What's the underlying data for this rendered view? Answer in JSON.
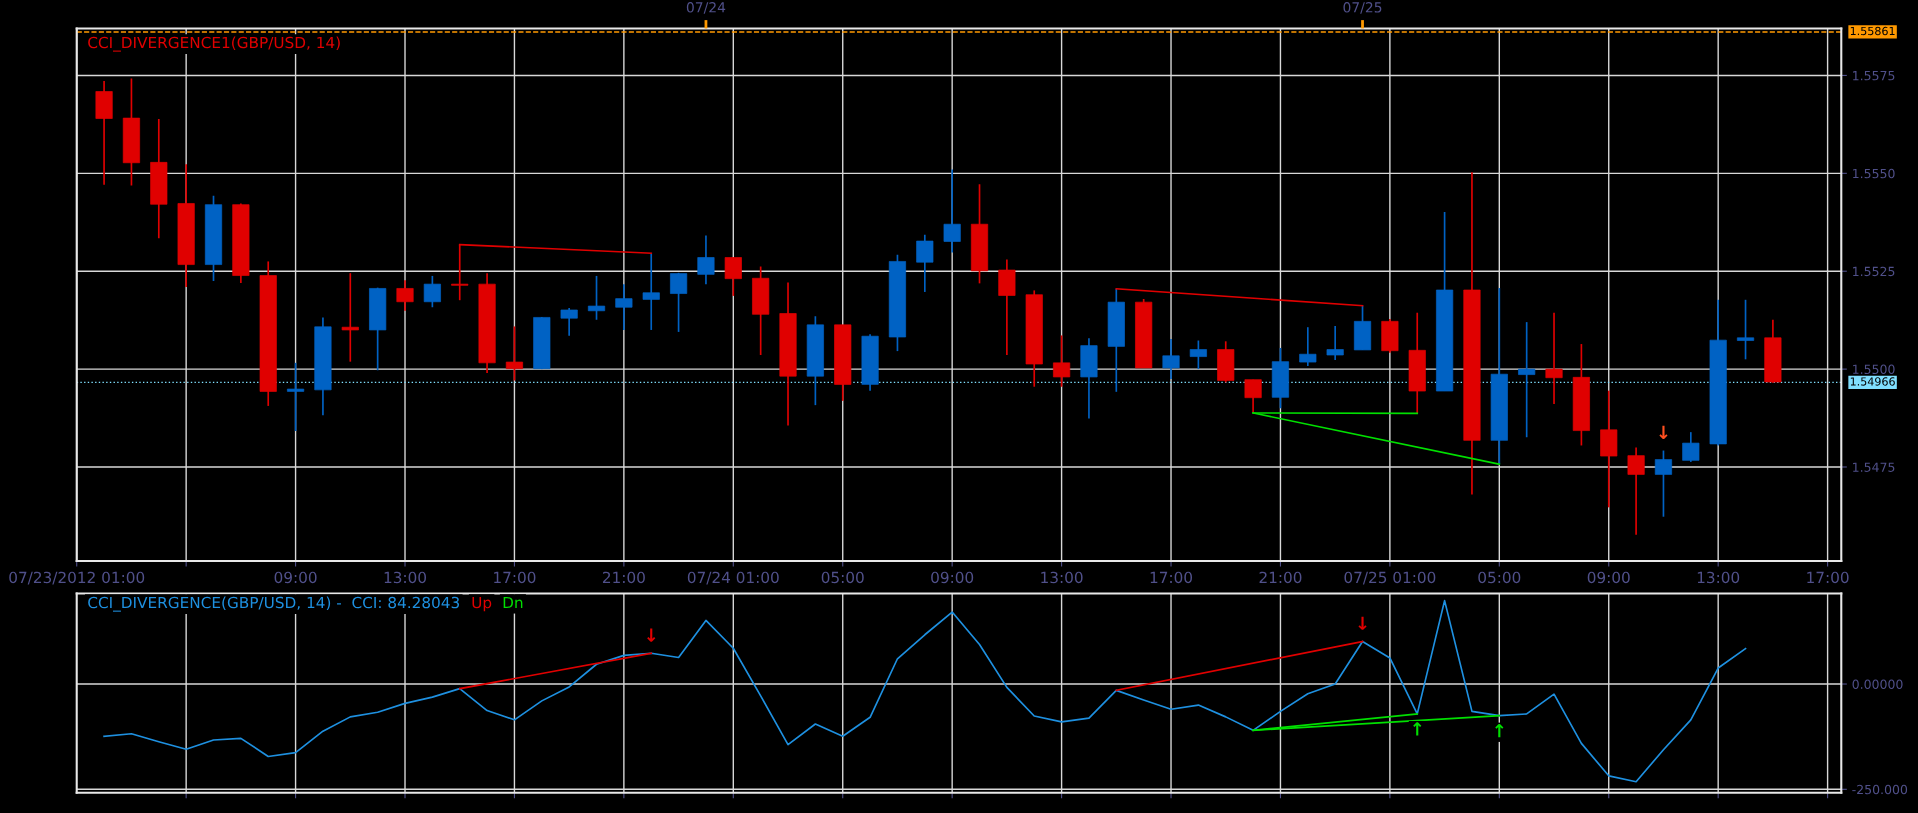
{
  "chart_data": [
    {
      "type": "candlestick",
      "title": "CCI_DIVERGENCE1(GBP/USD, 14)",
      "x": [
        "2012-07-23T02:00",
        "2012-07-23T03:00",
        "2012-07-23T04:00",
        "2012-07-23T05:00",
        "2012-07-23T06:00",
        "2012-07-23T07:00",
        "2012-07-23T08:00",
        "2012-07-23T09:00",
        "2012-07-23T10:00",
        "2012-07-23T11:00",
        "2012-07-23T12:00",
        "2012-07-23T13:00",
        "2012-07-23T14:00",
        "2012-07-23T15:00",
        "2012-07-23T16:00",
        "2012-07-23T17:00",
        "2012-07-23T18:00",
        "2012-07-23T19:00",
        "2012-07-23T20:00",
        "2012-07-23T21:00",
        "2012-07-23T22:00",
        "2012-07-23T23:00",
        "2012-07-24T00:00",
        "2012-07-24T01:00",
        "2012-07-24T02:00",
        "2012-07-24T03:00",
        "2012-07-24T04:00",
        "2012-07-24T05:00",
        "2012-07-24T06:00",
        "2012-07-24T07:00",
        "2012-07-24T08:00",
        "2012-07-24T09:00",
        "2012-07-24T10:00",
        "2012-07-24T11:00",
        "2012-07-24T12:00",
        "2012-07-24T13:00",
        "2012-07-24T14:00",
        "2012-07-24T15:00",
        "2012-07-24T16:00",
        "2012-07-24T17:00",
        "2012-07-24T18:00",
        "2012-07-24T19:00",
        "2012-07-24T20:00",
        "2012-07-24T21:00",
        "2012-07-24T22:00",
        "2012-07-24T23:00",
        "2012-07-25T00:00",
        "2012-07-25T01:00",
        "2012-07-25T02:00",
        "2012-07-25T03:00",
        "2012-07-25T04:00",
        "2012-07-25T05:00",
        "2012-07-25T06:00",
        "2012-07-25T07:00",
        "2012-07-25T08:00",
        "2012-07-25T09:00",
        "2012-07-25T10:00",
        "2012-07-25T11:00",
        "2012-07-25T12:00",
        "2012-07-25T13:00",
        "2012-07-25T14:00",
        "2012-07-25T15:00"
      ],
      "ohlc": [
        [
          1.55709,
          1.55736,
          1.55471,
          1.5564
        ],
        [
          1.55641,
          1.55742,
          1.55469,
          1.55527
        ],
        [
          1.55528,
          1.55639,
          1.55334,
          1.55421
        ],
        [
          1.55423,
          1.55523,
          1.5521,
          1.55267
        ],
        [
          1.55267,
          1.55443,
          1.55225,
          1.5542
        ],
        [
          1.5542,
          1.55423,
          1.5522,
          1.55239
        ],
        [
          1.55239,
          1.55275,
          1.54906,
          1.54943
        ],
        [
          1.54943,
          1.55016,
          1.54842,
          1.54949
        ],
        [
          1.54947,
          1.55132,
          1.54882,
          1.55108
        ],
        [
          1.55107,
          1.55245,
          1.55019,
          1.551
        ],
        [
          1.551,
          1.55208,
          1.54997,
          1.55206
        ],
        [
          1.55206,
          1.55227,
          1.55149,
          1.55172
        ],
        [
          1.55172,
          1.55238,
          1.55158,
          1.55217
        ],
        [
          1.55217,
          1.55318,
          1.55176,
          1.55214
        ],
        [
          1.55217,
          1.55245,
          1.5499,
          1.55016
        ],
        [
          1.55018,
          1.55109,
          1.54971,
          1.55001
        ],
        [
          1.55001,
          1.55133,
          1.55,
          1.55132
        ],
        [
          1.5513,
          1.55156,
          1.55085,
          1.55151
        ],
        [
          1.55149,
          1.55238,
          1.55126,
          1.55161
        ],
        [
          1.55158,
          1.55217,
          1.551,
          1.5518
        ],
        [
          1.55178,
          1.55296,
          1.551,
          1.55195
        ],
        [
          1.55193,
          1.55246,
          1.55095,
          1.55244
        ],
        [
          1.55242,
          1.55341,
          1.55217,
          1.55285
        ],
        [
          1.55285,
          1.55285,
          1.55187,
          1.55231
        ],
        [
          1.55232,
          1.55262,
          1.55036,
          1.5514
        ],
        [
          1.55142,
          1.55221,
          1.54856,
          1.54982
        ],
        [
          1.54982,
          1.55135,
          1.54908,
          1.55113
        ],
        [
          1.55113,
          1.55113,
          1.54919,
          1.54961
        ],
        [
          1.54961,
          1.55089,
          1.54945,
          1.55084
        ],
        [
          1.55082,
          1.55292,
          1.55046,
          1.55275
        ],
        [
          1.55273,
          1.55343,
          1.55197,
          1.55327
        ],
        [
          1.55326,
          1.5551,
          1.55298,
          1.5537
        ],
        [
          1.5537,
          1.55472,
          1.55219,
          1.55251
        ],
        [
          1.55253,
          1.5528,
          1.55036,
          1.55188
        ],
        [
          1.5519,
          1.55201,
          1.54955,
          1.55013
        ],
        [
          1.55016,
          1.55086,
          1.54955,
          1.5498
        ],
        [
          1.5498,
          1.55079,
          1.54874,
          1.5506
        ],
        [
          1.55058,
          1.55205,
          1.54942,
          1.55171
        ],
        [
          1.55171,
          1.55179,
          1.55003,
          1.55003
        ],
        [
          1.55003,
          1.55077,
          1.54975,
          1.55034
        ],
        [
          1.55032,
          1.55073,
          1.55,
          1.5505
        ],
        [
          1.5505,
          1.55071,
          1.54966,
          1.54971
        ],
        [
          1.54973,
          1.54973,
          1.54888,
          1.54927
        ],
        [
          1.54928,
          1.55054,
          1.549,
          1.55019
        ],
        [
          1.55018,
          1.55107,
          1.55008,
          1.55038
        ],
        [
          1.55036,
          1.5511,
          1.55023,
          1.5505
        ],
        [
          1.55049,
          1.55162,
          1.55049,
          1.55122
        ],
        [
          1.55122,
          1.55128,
          1.55042,
          1.55047
        ],
        [
          1.55048,
          1.55144,
          1.54887,
          1.54944
        ],
        [
          1.54944,
          1.55401,
          1.54944,
          1.55202
        ],
        [
          1.55202,
          1.55503,
          1.5468,
          1.54818
        ],
        [
          1.54818,
          1.55207,
          1.54757,
          1.54987
        ],
        [
          1.54986,
          1.5512,
          1.54826,
          1.55
        ],
        [
          1.55,
          1.55144,
          1.54911,
          1.54978
        ],
        [
          1.54979,
          1.55064,
          1.54805,
          1.54843
        ],
        [
          1.54845,
          1.54945,
          1.54647,
          1.54778
        ],
        [
          1.54779,
          1.548,
          1.54577,
          1.54731
        ],
        [
          1.54731,
          1.54792,
          1.54623,
          1.54769
        ],
        [
          1.54767,
          1.54839,
          1.54763,
          1.54811
        ],
        [
          1.54809,
          1.55177,
          1.54805,
          1.55074
        ],
        [
          1.55073,
          1.55177,
          1.55025,
          1.5508
        ],
        [
          1.5508,
          1.55126,
          1.54965,
          1.54967
        ]
      ],
      "colors": [
        "#e00000",
        "#e00000",
        "#e00000",
        "#e00000",
        "#0062c4",
        "#e00000",
        "#e00000",
        "#0062c4",
        "#0062c4",
        "#e00000",
        "#0062c4",
        "#e00000",
        "#0062c4",
        "#e00000",
        "#e00000",
        "#e00000",
        "#0062c4",
        "#0062c4",
        "#0062c4",
        "#0062c4",
        "#0062c4",
        "#0062c4",
        "#0062c4",
        "#e00000",
        "#e00000",
        "#e00000",
        "#0062c4",
        "#e00000",
        "#0062c4",
        "#0062c4",
        "#0062c4",
        "#0062c4",
        "#e00000",
        "#e00000",
        "#e00000",
        "#e00000",
        "#0062c4",
        "#0062c4",
        "#e00000",
        "#0062c4",
        "#0062c4",
        "#e00000",
        "#e00000",
        "#0062c4",
        "#0062c4",
        "#0062c4",
        "#0062c4",
        "#e00000",
        "#e00000",
        "#0062c4",
        "#e00000",
        "#0062c4",
        "#0062c4",
        "#e00000",
        "#e00000",
        "#e00000",
        "#e00000",
        "#0062c4",
        "#0062c4",
        "#0062c4",
        "#0062c4",
        "#e00000"
      ],
      "series": [
        {
          "type": "line",
          "color": "#e00000",
          "x": [
            "2012-07-23T15:00",
            "2012-07-23T22:00"
          ],
          "values": [
            1.55318,
            1.55296
          ]
        },
        {
          "type": "line",
          "color": "#e00000",
          "x": [
            "2012-07-24T15:00",
            "2012-07-25T00:00"
          ],
          "values": [
            1.55205,
            1.55162
          ]
        },
        {
          "type": "line",
          "color": "#00e000",
          "x": [
            "2012-07-24T20:00",
            "2012-07-25T02:00"
          ],
          "values": [
            1.54888,
            1.54887
          ]
        },
        {
          "type": "line",
          "color": "#00e000",
          "x": [
            "2012-07-24T20:00",
            "2012-07-25T05:00"
          ],
          "values": [
            1.54888,
            1.54757
          ]
        }
      ],
      "annotations": [
        {
          "text": "↓",
          "x": "2012-07-25T11:00",
          "y": 1.54792
        }
      ],
      "xlim": [
        "2012-07-23T01:00",
        "2012-07-25T17:30"
      ],
      "xticks": [
        {
          "value": "2012-07-23T01:00",
          "label": "07/23/2012 01:00"
        },
        {
          "value": "2012-07-23T05:00",
          "label": null
        },
        {
          "value": "2012-07-23T09:00",
          "label": "09:00"
        },
        {
          "value": "2012-07-23T13:00",
          "label": "13:00"
        },
        {
          "value": "2012-07-23T17:00",
          "label": "17:00"
        },
        {
          "value": "2012-07-23T21:00",
          "label": "21:00"
        },
        {
          "value": "2012-07-24T01:00",
          "label": "07/24 01:00"
        },
        {
          "value": "2012-07-24T05:00",
          "label": "05:00"
        },
        {
          "value": "2012-07-24T09:00",
          "label": "09:00"
        },
        {
          "value": "2012-07-24T13:00",
          "label": "13:00"
        },
        {
          "value": "2012-07-24T17:00",
          "label": "17:00"
        },
        {
          "value": "2012-07-24T21:00",
          "label": "21:00"
        },
        {
          "value": "2012-07-25T01:00",
          "label": "07/25 01:00"
        },
        {
          "value": "2012-07-25T05:00",
          "label": "05:00"
        },
        {
          "value": "2012-07-25T09:00",
          "label": "09:00"
        },
        {
          "value": "2012-07-25T13:00",
          "label": "13:00"
        },
        {
          "value": "2012-07-25T17:00",
          "label": "17:00"
        }
      ],
      "x2lim": [
        "2012-07-23T01:00",
        "2012-07-25T17:30"
      ],
      "x2ticks": [
        {
          "value": "2012-07-24T00:00",
          "label": "07/24"
        },
        {
          "value": "2012-07-25T00:00",
          "label": "07/25"
        }
      ],
      "ylim": [
        1.5451,
        1.5587
      ],
      "yticks": [
        1.5475,
        {
          "value": 1.55,
          "label": "1.5500"
        },
        1.5525,
        {
          "value": 1.555,
          "label": "1.5550"
        },
        1.5575
      ],
      "ref_lines": [
        {
          "axis": "y",
          "value": 1.55861,
          "label": "1.55861",
          "color": "#ff9900",
          "line_style": "dashed"
        },
        {
          "axis": "y",
          "value": 1.54966,
          "label": "1.54966",
          "color": "#80e0ff",
          "line_style": "dotted"
        }
      ],
      "grid": true
    },
    {
      "type": "line",
      "title": "CCI_DIVERGENCE(GBP/USD, 14) -  CCI: 84.28043",
      "series": [
        {
          "color": "#1e90e0",
          "x": [
            "2012-07-23T02:00",
            "2012-07-23T03:00",
            "2012-07-23T04:00",
            "2012-07-23T05:00",
            "2012-07-23T06:00",
            "2012-07-23T07:00",
            "2012-07-23T08:00",
            "2012-07-23T09:00",
            "2012-07-23T10:00",
            "2012-07-23T11:00",
            "2012-07-23T12:00",
            "2012-07-23T13:00",
            "2012-07-23T14:00",
            "2012-07-23T15:00",
            "2012-07-23T16:00",
            "2012-07-23T17:00",
            "2012-07-23T18:00",
            "2012-07-23T19:00",
            "2012-07-23T20:00",
            "2012-07-23T21:00",
            "2012-07-23T22:00",
            "2012-07-23T23:00",
            "2012-07-24T00:00",
            "2012-07-24T01:00",
            "2012-07-24T02:00",
            "2012-07-24T03:00",
            "2012-07-24T04:00",
            "2012-07-24T05:00",
            "2012-07-24T06:00",
            "2012-07-24T07:00",
            "2012-07-24T08:00",
            "2012-07-24T09:00",
            "2012-07-24T10:00",
            "2012-07-24T11:00",
            "2012-07-24T12:00",
            "2012-07-24T13:00",
            "2012-07-24T14:00",
            "2012-07-24T15:00",
            "2012-07-24T16:00",
            "2012-07-24T17:00",
            "2012-07-24T18:00",
            "2012-07-24T19:00",
            "2012-07-24T20:00",
            "2012-07-24T21:00",
            "2012-07-24T22:00",
            "2012-07-24T23:00",
            "2012-07-25T00:00",
            "2012-07-25T01:00",
            "2012-07-25T02:00",
            "2012-07-25T03:00",
            "2012-07-25T04:00",
            "2012-07-25T05:00",
            "2012-07-25T06:00",
            "2012-07-25T07:00",
            "2012-07-25T08:00",
            "2012-07-25T09:00",
            "2012-07-25T10:00",
            "2012-07-25T11:00",
            "2012-07-25T12:00",
            "2012-07-25T13:00",
            "2012-07-25T14:00"
          ],
          "values": [
            -124,
            -118,
            -137,
            -155,
            -133,
            -129,
            -172,
            -163,
            -112,
            -78,
            -67,
            -46,
            -31,
            -11,
            -63,
            -85,
            -40,
            -7,
            47,
            68,
            73,
            63,
            151,
            85,
            -28,
            -144,
            -95,
            -124,
            -79,
            60,
            117,
            171,
            94,
            -8,
            -76,
            -90,
            -81,
            -15,
            -38,
            -60,
            -50,
            -78,
            -110,
            -65,
            -23,
            0,
            101,
            62,
            -71,
            198,
            -65,
            -75,
            -71,
            -24,
            -141,
            -218,
            -232,
            -156,
            -85,
            38,
            84
          ]
        },
        {
          "name": "Up",
          "color": "#e00000",
          "x": [
            "2012-07-23T15:00",
            "2012-07-23T22:00"
          ],
          "values": [
            -11,
            73
          ]
        },
        {
          "color": "#e00000",
          "x": [
            "2012-07-24T15:00",
            "2012-07-25T00:00"
          ],
          "values": [
            -15,
            101
          ]
        },
        {
          "name": "Dn",
          "color": "#00e000",
          "x": [
            "2012-07-24T20:00",
            "2012-07-25T02:00"
          ],
          "values": [
            -110,
            -71
          ]
        },
        {
          "color": "#00e000",
          "x": [
            "2012-07-24T20:00",
            "2012-07-25T05:00"
          ],
          "values": [
            -110,
            -75
          ]
        }
      ],
      "annotations": [
        {
          "text": "↓",
          "x": "2012-07-23T22:00",
          "y": 73
        },
        {
          "text": "↓",
          "x": "2012-07-25T00:00",
          "y": 101
        },
        {
          "text": "↑",
          "x": "2012-07-25T02:00",
          "y": -71
        },
        {
          "text": "↑",
          "x": "2012-07-25T05:00",
          "y": -75
        }
      ],
      "legend": "top left",
      "xlim": [
        "2012-07-23T01:00",
        "2012-07-25T17:30"
      ],
      "xticks": [
        {
          "value": "2012-07-23T05:00",
          "label": null
        },
        {
          "value": "2012-07-23T09:00",
          "label": null
        },
        {
          "value": "2012-07-23T13:00",
          "label": null
        },
        {
          "value": "2012-07-23T17:00",
          "label": null
        },
        {
          "value": "2012-07-23T21:00",
          "label": null
        },
        {
          "value": "2012-07-24T01:00",
          "label": null
        },
        {
          "value": "2012-07-24T05:00",
          "label": null
        },
        {
          "value": "2012-07-24T09:00",
          "label": null
        },
        {
          "value": "2012-07-24T13:00",
          "label": null
        },
        {
          "value": "2012-07-24T17:00",
          "label": null
        },
        {
          "value": "2012-07-24T21:00",
          "label": null
        },
        {
          "value": "2012-07-25T01:00",
          "label": null
        },
        {
          "value": "2012-07-25T05:00",
          "label": null
        },
        {
          "value": "2012-07-25T09:00",
          "label": null
        },
        {
          "value": "2012-07-25T13:00",
          "label": null
        },
        {
          "value": "2012-07-25T17:00",
          "label": null
        }
      ],
      "ylim": [
        -258,
        215
      ],
      "yticks": [
        {
          "value": 0,
          "label": "0.00000"
        },
        {
          "value": -250,
          "label": "-250.000"
        }
      ],
      "tick_labels": "y",
      "grid": true
    }
  ]
}
